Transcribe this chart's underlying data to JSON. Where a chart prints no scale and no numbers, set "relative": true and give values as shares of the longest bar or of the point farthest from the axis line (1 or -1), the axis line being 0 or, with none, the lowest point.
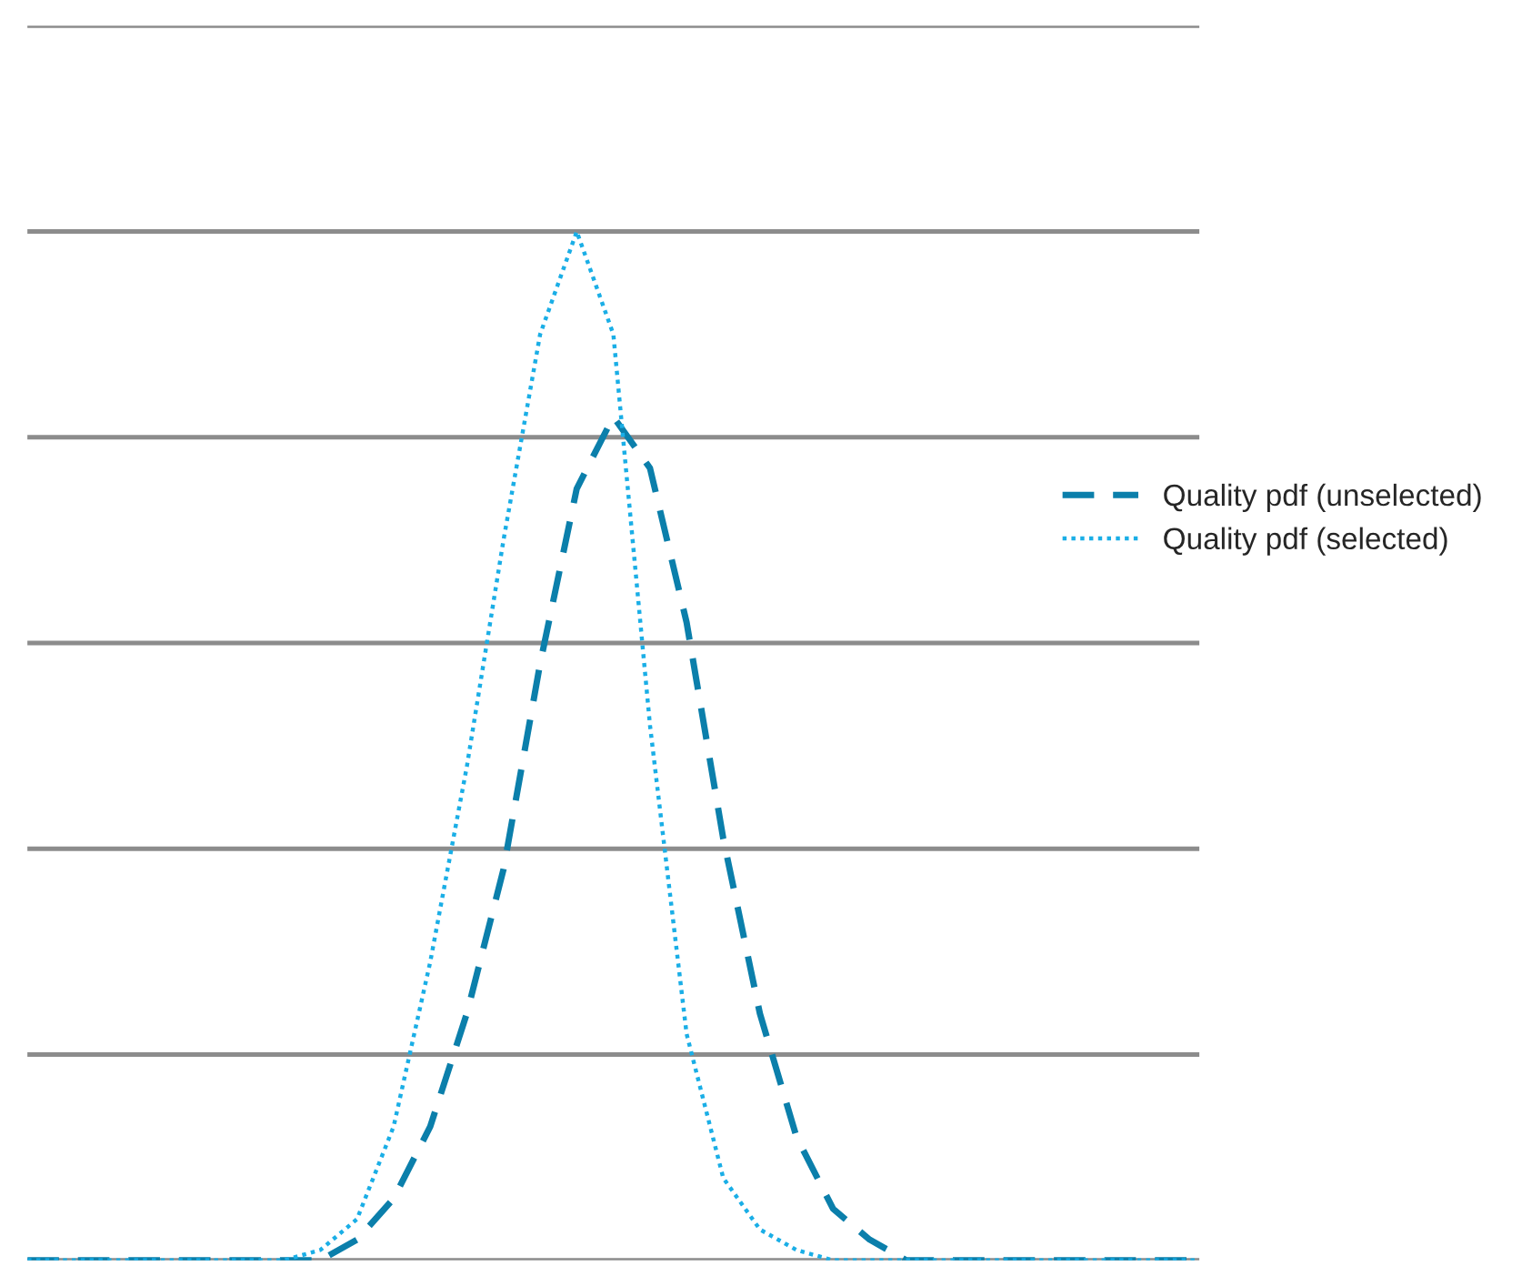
{
  "chart_data": {
    "type": "line",
    "relative": true,
    "grid": "y",
    "legend": "right",
    "categories": [
      null,
      null,
      null,
      null,
      null,
      null,
      null,
      null,
      null,
      null,
      null,
      null,
      null,
      null,
      null,
      null,
      null,
      null,
      null,
      null,
      null,
      null,
      null,
      null,
      null,
      null,
      null,
      null,
      null,
      null,
      null,
      null,
      null
    ],
    "series": [
      {
        "name": "Quality pdf (unselected)",
        "color": "#0b7fab",
        "line_style": "dashed",
        "values": [
          0,
          0,
          0,
          0,
          0,
          0,
          0,
          0,
          0,
          0.02,
          0.06,
          0.13,
          0.24,
          0.38,
          0.58,
          0.75,
          0.82,
          0.77,
          0.62,
          0.41,
          0.24,
          0.12,
          0.05,
          0.02,
          0,
          0,
          0,
          0,
          0,
          0,
          0,
          0,
          0
        ]
      },
      {
        "name": "Quality pdf (selected)",
        "color": "#1aaee6",
        "line_style": "dotted",
        "values": [
          0,
          0,
          0,
          0,
          0,
          0,
          0,
          0,
          0.01,
          0.04,
          0.13,
          0.29,
          0.48,
          0.7,
          0.9,
          1.0,
          0.9,
          0.52,
          0.22,
          0.08,
          0.03,
          0.01,
          0,
          0,
          0,
          0,
          0,
          0,
          0,
          0,
          0,
          0,
          0
        ]
      }
    ]
  }
}
